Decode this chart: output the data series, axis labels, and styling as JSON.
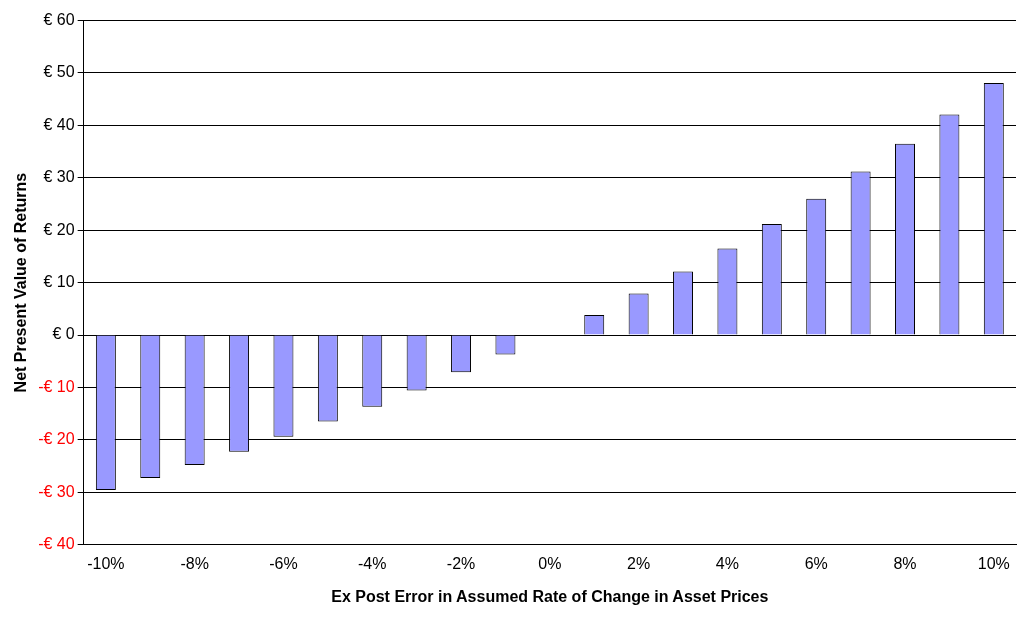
{
  "chart_data": {
    "type": "bar",
    "xlabel": "Ex Post Error in Assumed Rate of Change in Asset Prices",
    "ylabel": "Net Present Value of Returns",
    "categories": [
      "-10%",
      null,
      "-8%",
      null,
      "-6%",
      null,
      "-4%",
      null,
      "-2%",
      null,
      "0%",
      null,
      "2%",
      null,
      "4%",
      null,
      "6%",
      null,
      "8%",
      null,
      "10%"
    ],
    "values": [
      -29.6,
      -27.3,
      -24.8,
      -22.3,
      -19.4,
      -16.5,
      -13.7,
      -10.6,
      -7.1,
      -3.7,
      0,
      3.8,
      7.9,
      12.1,
      16.5,
      21.2,
      26.0,
      31.2,
      36.5,
      42.1,
      48.1
    ],
    "color": "#9999ff",
    "ylim": [
      -40,
      60
    ],
    "yticks": [
      {
        "value": -40,
        "label": "-€ 40"
      },
      {
        "value": -30,
        "label": "-€ 30"
      },
      {
        "value": -20,
        "label": "-€ 20"
      },
      {
        "value": -10,
        "label": "-€ 10"
      },
      {
        "value": 0,
        "label": "€ 0"
      },
      {
        "value": 10,
        "label": "€ 10"
      },
      {
        "value": 20,
        "label": "€ 20"
      },
      {
        "value": 30,
        "label": "€ 30"
      },
      {
        "value": 40,
        "label": "€ 40"
      },
      {
        "value": 50,
        "label": "€ 50"
      },
      {
        "value": 60,
        "label": "€ 60"
      }
    ],
    "grid": "y"
  }
}
